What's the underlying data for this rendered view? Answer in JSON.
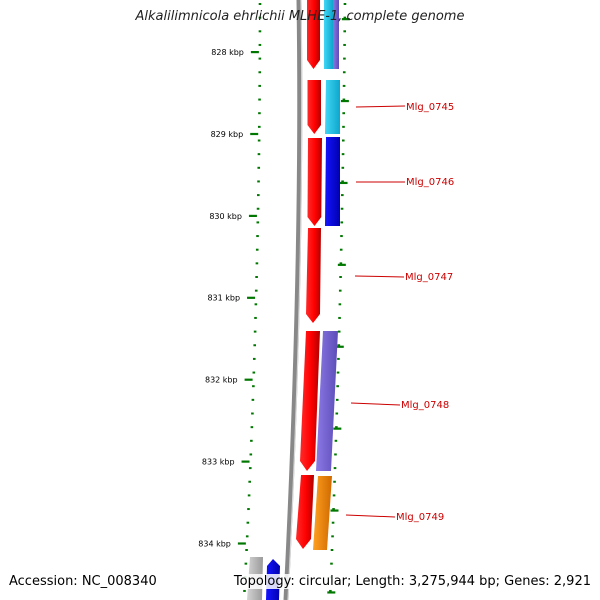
{
  "title": "Alkalilimnicola ehrlichii MLHE-1, complete genome",
  "footer": {
    "accession": "Accession: NC_008340",
    "summary": "Topology: circular; Length: 3,275,944 bp; Genes: 2,921"
  },
  "ruler_ticks": [
    {
      "label": "828 kbp",
      "kbp": 828
    },
    {
      "label": "829 kbp",
      "kbp": 829
    },
    {
      "label": "830 kbp",
      "kbp": 830
    },
    {
      "label": "831 kbp",
      "kbp": 831
    },
    {
      "label": "832 kbp",
      "kbp": 832
    },
    {
      "label": "833 kbp",
      "kbp": 833
    },
    {
      "label": "834 kbp",
      "kbp": 834
    }
  ],
  "gene_labels": [
    {
      "name": "Mlg_0745"
    },
    {
      "name": "Mlg_0746"
    },
    {
      "name": "Mlg_0747"
    },
    {
      "name": "Mlg_0748"
    },
    {
      "name": "Mlg_0749"
    }
  ],
  "colors": {
    "cds": "#ff0000",
    "label": "#cc0000",
    "ruler": "#007700",
    "backbone": "#888888",
    "cog_cyan": "#1ec8ee",
    "cog_blue": "#0000ee",
    "cog_purple": "#7a68d8",
    "cog_orange": "#ff8c00",
    "cog_grey": "#bbbbbb"
  }
}
